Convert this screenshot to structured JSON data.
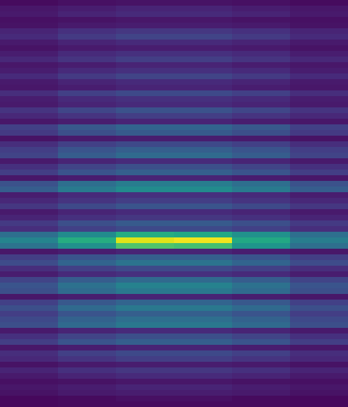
{
  "chart_data": {
    "type": "heatmap",
    "tick_labels": false,
    "zlim": [
      0,
      100
    ],
    "cells": [
      [
        3,
        4,
        5,
        5,
        4,
        3
      ],
      [
        6,
        8,
        10,
        10,
        8,
        6
      ],
      [
        7,
        10,
        12,
        12,
        10,
        7
      ],
      [
        4,
        5,
        6,
        6,
        5,
        4
      ],
      [
        5,
        7,
        8,
        8,
        7,
        5
      ],
      [
        10,
        14,
        16,
        16,
        14,
        10
      ],
      [
        12,
        17,
        20,
        20,
        17,
        12
      ],
      [
        7,
        10,
        12,
        12,
        10,
        7
      ],
      [
        5,
        7,
        8,
        8,
        7,
        5
      ],
      [
        8,
        12,
        14,
        14,
        12,
        8
      ],
      [
        11,
        15,
        18,
        18,
        15,
        11
      ],
      [
        6,
        8,
        10,
        10,
        8,
        6
      ],
      [
        8,
        12,
        14,
        14,
        12,
        8
      ],
      [
        12,
        17,
        20,
        20,
        17,
        12
      ],
      [
        7,
        10,
        12,
        12,
        10,
        7
      ],
      [
        6,
        8,
        10,
        10,
        8,
        6
      ],
      [
        13,
        19,
        22,
        22,
        19,
        13
      ],
      [
        8,
        12,
        14,
        14,
        12,
        8
      ],
      [
        7,
        10,
        12,
        12,
        10,
        7
      ],
      [
        15,
        21,
        25,
        25,
        21,
        15
      ],
      [
        11,
        15,
        18,
        18,
        15,
        11
      ],
      [
        6,
        8,
        10,
        10,
        8,
        6
      ],
      [
        19,
        27,
        32,
        32,
        27,
        19
      ],
      [
        17,
        24,
        28,
        28,
        24,
        17
      ],
      [
        5,
        7,
        8,
        8,
        7,
        5
      ],
      [
        13,
        19,
        22,
        22,
        19,
        13
      ],
      [
        18,
        26,
        30,
        30,
        26,
        18
      ],
      [
        20,
        29,
        34,
        34,
        29,
        20
      ],
      [
        7,
        10,
        12,
        12,
        10,
        7
      ],
      [
        14,
        20,
        24,
        24,
        20,
        14
      ],
      [
        18,
        26,
        30,
        30,
        26,
        18
      ],
      [
        6,
        8,
        10,
        10,
        8,
        6
      ],
      [
        25,
        36,
        42,
        42,
        36,
        25
      ],
      [
        29,
        41,
        48,
        48,
        41,
        29
      ],
      [
        8,
        12,
        14,
        14,
        12,
        8
      ],
      [
        11,
        15,
        18,
        18,
        15,
        11
      ],
      [
        16,
        22,
        26,
        26,
        22,
        16
      ],
      [
        7,
        10,
        12,
        12,
        10,
        7
      ],
      [
        10,
        14,
        16,
        16,
        14,
        10
      ],
      [
        17,
        24,
        28,
        28,
        24,
        17
      ],
      [
        13,
        19,
        22,
        22,
        19,
        13
      ],
      [
        36,
        48,
        62,
        60,
        50,
        36
      ],
      [
        45,
        62,
        95,
        98,
        60,
        42
      ],
      [
        38,
        50,
        72,
        70,
        52,
        36
      ],
      [
        6,
        8,
        10,
        10,
        8,
        6
      ],
      [
        18,
        26,
        30,
        30,
        26,
        18
      ],
      [
        23,
        32,
        38,
        38,
        32,
        23
      ],
      [
        13,
        19,
        22,
        22,
        19,
        13
      ],
      [
        8,
        12,
        14,
        14,
        12,
        8
      ],
      [
        20,
        29,
        34,
        34,
        29,
        20
      ],
      [
        26,
        37,
        44,
        44,
        37,
        26
      ],
      [
        24,
        34,
        40,
        40,
        34,
        24
      ],
      [
        6,
        8,
        10,
        10,
        8,
        6
      ],
      [
        19,
        27,
        32,
        32,
        27,
        19
      ],
      [
        24,
        34,
        40,
        40,
        34,
        24
      ],
      [
        18,
        26,
        30,
        30,
        26,
        18
      ],
      [
        22,
        31,
        36,
        36,
        31,
        22
      ],
      [
        24,
        34,
        40,
        40,
        34,
        24
      ],
      [
        7,
        10,
        12,
        12,
        10,
        7
      ],
      [
        14,
        20,
        24,
        24,
        20,
        14
      ],
      [
        18,
        26,
        30,
        30,
        26,
        18
      ],
      [
        6,
        8,
        10,
        10,
        8,
        6
      ],
      [
        13,
        19,
        22,
        22,
        19,
        13
      ],
      [
        11,
        15,
        18,
        18,
        15,
        11
      ],
      [
        5,
        7,
        8,
        8,
        7,
        5
      ],
      [
        10,
        14,
        16,
        16,
        14,
        10
      ],
      [
        7,
        10,
        12,
        12,
        10,
        7
      ],
      [
        4,
        5,
        6,
        6,
        5,
        4
      ],
      [
        6,
        8,
        10,
        10,
        8,
        6
      ],
      [
        5,
        7,
        8,
        8,
        7,
        5
      ],
      [
        2,
        3,
        4,
        4,
        3,
        2
      ],
      [
        2,
        3,
        3,
        3,
        3,
        2
      ]
    ]
  }
}
